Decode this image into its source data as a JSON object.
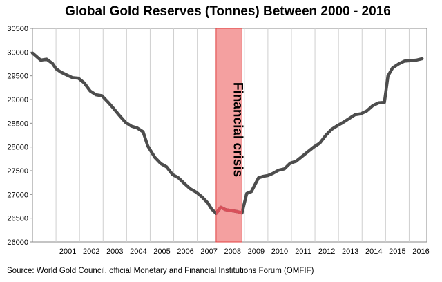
{
  "chart_data": {
    "type": "line",
    "title": "Global Gold Reserves (Tonnes) Between 2000 - 2016",
    "source": "Source: World Gold Council, official Monetary and Financial Institutions Forum (OMFIF)",
    "xlabel": "",
    "ylabel": "",
    "ylim": [
      26000,
      30500
    ],
    "yticks": [
      26000,
      26500,
      27000,
      27500,
      28000,
      28500,
      29000,
      29500,
      30000,
      30500
    ],
    "xlim": [
      2000.0,
      2016.75
    ],
    "xticks": [
      "2001",
      "2002",
      "2003",
      "2004",
      "2005",
      "2006",
      "2007",
      "2008",
      "2009",
      "2010",
      "2011",
      "2012",
      "2013",
      "2014",
      "2015",
      "2016"
    ],
    "grid": "vertical",
    "annotation": {
      "label": "Financial crisis",
      "x_start": 2007.8,
      "x_end": 2008.9,
      "band_color": "#f4a0a0",
      "border_color": "#e04040",
      "line_color": "#d8505a"
    },
    "line_color": "#4d4d4d",
    "series": [
      {
        "name": "",
        "x": [
          2000.0,
          2000.35,
          2000.6,
          2000.85,
          2001.0,
          2001.2,
          2001.45,
          2001.7,
          2001.95,
          2002.2,
          2002.45,
          2002.7,
          2002.95,
          2003.2,
          2003.45,
          2003.7,
          2003.95,
          2004.2,
          2004.45,
          2004.7,
          2004.9,
          2005.2,
          2005.45,
          2005.7,
          2005.95,
          2006.2,
          2006.45,
          2006.7,
          2006.95,
          2007.2,
          2007.45,
          2007.6,
          2007.8,
          2008.0,
          2008.2,
          2008.45,
          2008.7,
          2008.9,
          2009.1,
          2009.3,
          2009.6,
          2009.8,
          2010.0,
          2010.2,
          2010.45,
          2010.7,
          2010.95,
          2011.2,
          2011.45,
          2011.7,
          2011.95,
          2012.2,
          2012.45,
          2012.7,
          2012.95,
          2013.2,
          2013.45,
          2013.7,
          2013.95,
          2014.2,
          2014.45,
          2014.7,
          2014.95,
          2015.1,
          2015.3,
          2015.55,
          2015.8,
          2016.05,
          2016.3,
          2016.55
        ],
        "values": [
          29980,
          29830,
          29850,
          29760,
          29650,
          29580,
          29520,
          29460,
          29450,
          29350,
          29180,
          29100,
          29080,
          28950,
          28810,
          28660,
          28520,
          28440,
          28400,
          28320,
          28020,
          27780,
          27650,
          27580,
          27420,
          27350,
          27230,
          27120,
          27050,
          26950,
          26820,
          26700,
          26600,
          26730,
          26680,
          26660,
          26640,
          26610,
          27020,
          27060,
          27350,
          27380,
          27400,
          27440,
          27510,
          27540,
          27660,
          27700,
          27800,
          27900,
          28000,
          28080,
          28240,
          28370,
          28450,
          28520,
          28600,
          28680,
          28700,
          28760,
          28870,
          28930,
          28940,
          29500,
          29670,
          29750,
          29810,
          29820,
          29830,
          29860
        ]
      }
    ]
  }
}
